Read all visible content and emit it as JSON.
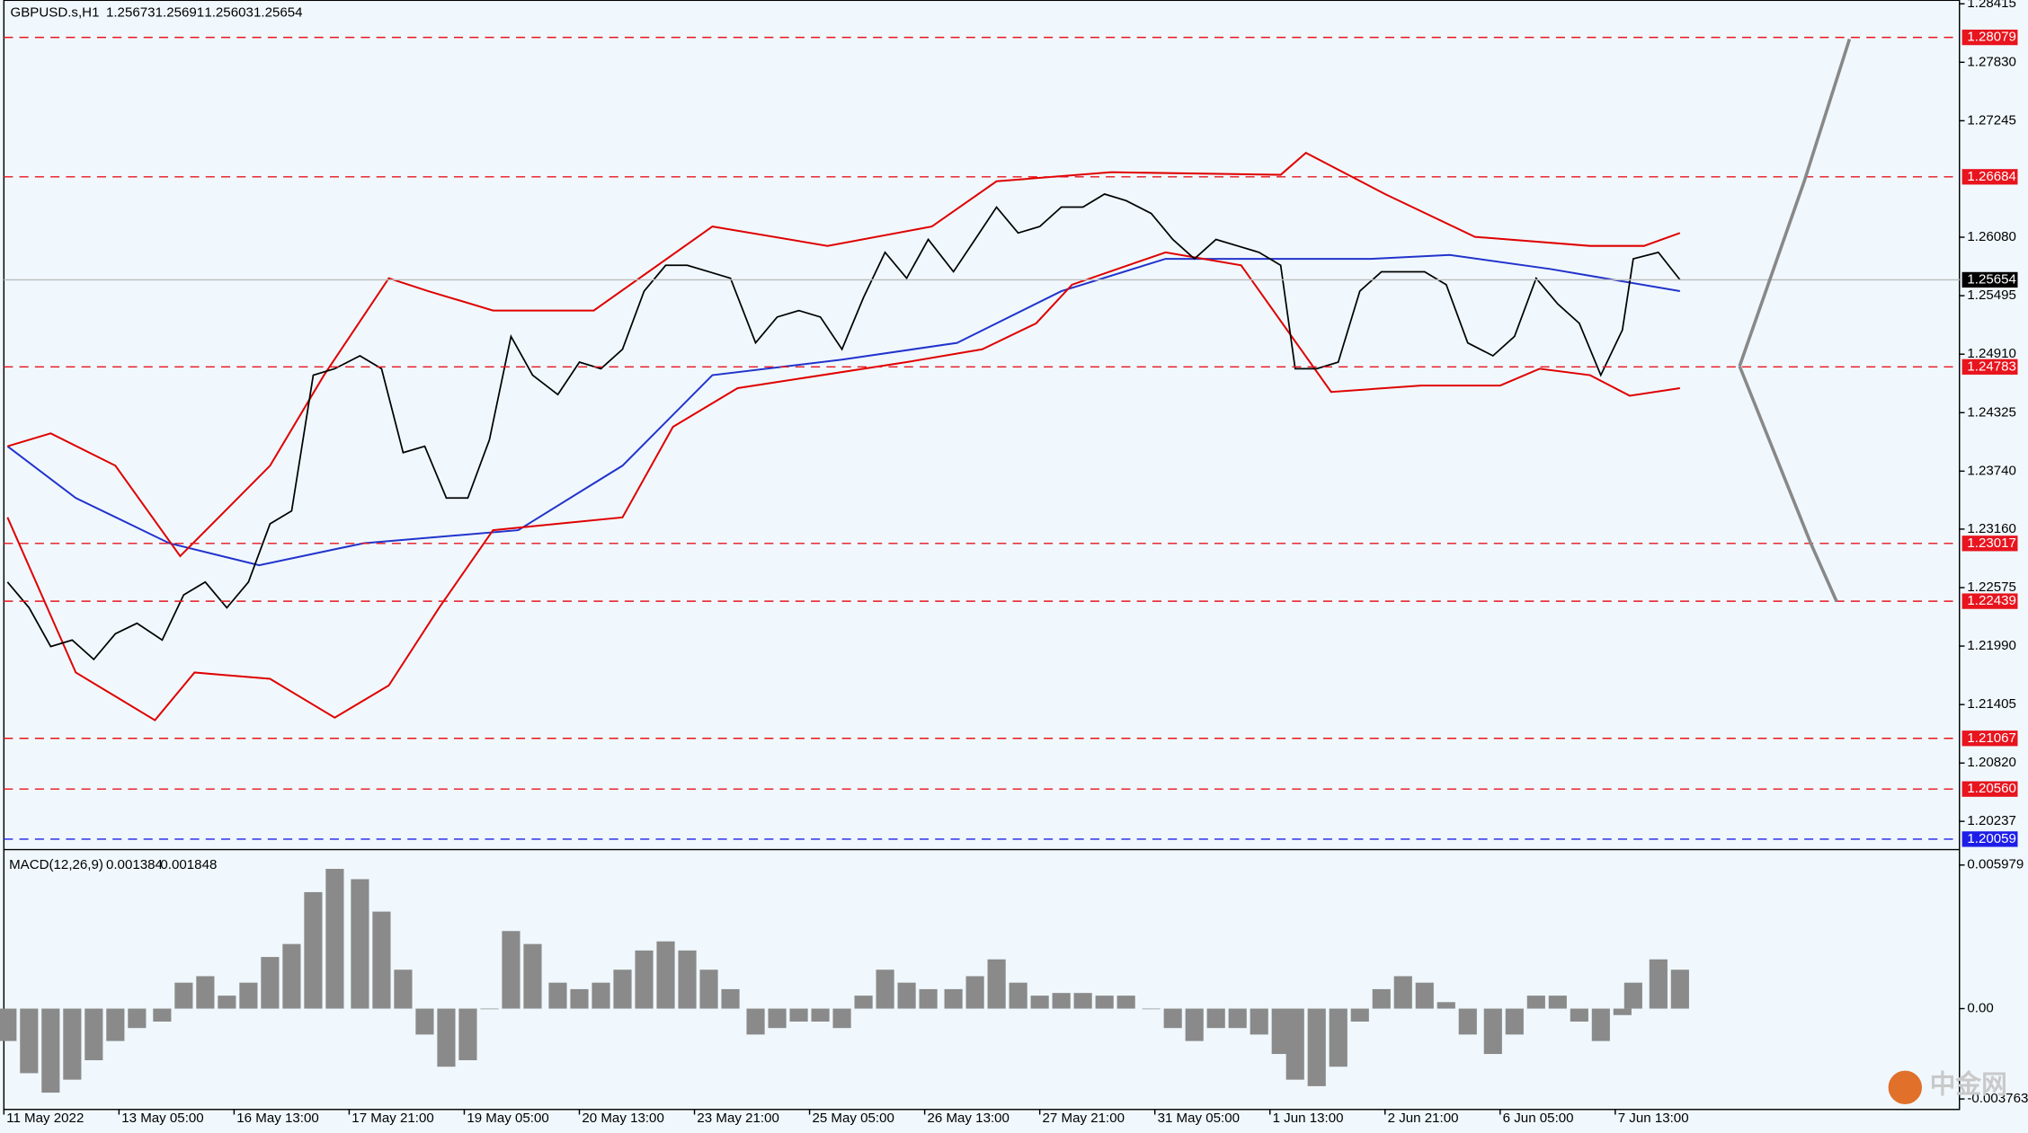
{
  "chart_data": [
    {
      "type": "line",
      "title": "GBPUSD.s,H1",
      "quote": [
        1.25673,
        1.25691,
        1.25603,
        1.25654
      ],
      "xlim": [
        0,
        543.7
      ],
      "ylim": [
        1.1998,
        1.2845
      ],
      "xticks": [
        {
          "value": 0,
          "label": "11 May 2022"
        },
        {
          "value": 32,
          "label": "13 May 05:00"
        },
        {
          "value": 64,
          "label": "16 May 13:00"
        },
        {
          "value": 96,
          "label": "17 May 21:00"
        },
        {
          "value": 128,
          "label": "19 May 05:00"
        },
        {
          "value": 160,
          "label": "20 May 13:00"
        },
        {
          "value": 192,
          "label": "23 May 21:00"
        },
        {
          "value": 224,
          "label": "25 May 05:00"
        },
        {
          "value": 256,
          "label": "26 May 13:00"
        },
        {
          "value": 288,
          "label": "27 May 21:00"
        },
        {
          "value": 320,
          "label": "31 May 05:00"
        },
        {
          "value": 352,
          "label": "1 Jun 13:00"
        },
        {
          "value": 384,
          "label": "2 Jun 21:00"
        },
        {
          "value": 416,
          "label": "6 Jun 05:00"
        },
        {
          "value": 448,
          "label": "7 Jun 13:00"
        }
      ],
      "yticks": [
        1.28415,
        {
          "value": 1.2783,
          "label": "1.27830"
        },
        1.27245,
        {
          "value": 1.2608,
          "label": "1.26080"
        },
        1.25495,
        {
          "value": 1.2491,
          "label": "1.24910"
        },
        1.24325,
        {
          "value": 1.2374,
          "label": "1.23740"
        },
        {
          "value": 1.2316,
          "label": "1.23160"
        },
        1.22575,
        {
          "value": 1.2199,
          "label": "1.21990"
        },
        1.21405,
        {
          "value": 1.2082,
          "label": "1.20820"
        },
        1.20237
      ],
      "levels": [
        1.28079,
        1.26684,
        1.24783,
        1.23017,
        1.22439,
        1.21067,
        {
          "value": 1.2056,
          "label": "1.20560"
        }
      ],
      "level_color": "#e8141e",
      "blue_level": 1.20059,
      "blue_level_color": "#1e1ee8",
      "last": 1.25654,
      "color": "#000000",
      "x": [
        1,
        7,
        13,
        19,
        25,
        31,
        37,
        44,
        50,
        56,
        62,
        68,
        74,
        80,
        86,
        92,
        99,
        105,
        111,
        117,
        123,
        129,
        135,
        141,
        147,
        154,
        160,
        166,
        172,
        178,
        184,
        190,
        196,
        202,
        209,
        215,
        221,
        227,
        233,
        239,
        245,
        251,
        257,
        264,
        270,
        276,
        282,
        288,
        294,
        300,
        306,
        312,
        319,
        325,
        331,
        337,
        343,
        349,
        355,
        359,
        365,
        371,
        377,
        383,
        389,
        395,
        401,
        407,
        414,
        420,
        426,
        432,
        438,
        444,
        450,
        453,
        460,
        466
      ],
      "values": [
        1.22631,
        1.22373,
        1.21985,
        1.2205,
        1.21856,
        1.22114,
        1.22218,
        1.2205,
        1.22502,
        1.22631,
        1.22373,
        1.22631,
        1.23213,
        1.23342,
        1.247,
        1.24765,
        1.24894,
        1.24765,
        1.23925,
        1.23989,
        1.23472,
        1.23472,
        1.24054,
        1.25088,
        1.247,
        1.24506,
        1.2483,
        1.24765,
        1.24959,
        1.25541,
        1.25799,
        1.25799,
        1.25735,
        1.2567,
        1.25023,
        1.25282,
        1.25347,
        1.25282,
        1.24959,
        1.25476,
        1.25929,
        1.2567,
        1.26058,
        1.25735,
        1.26058,
        1.26381,
        1.26123,
        1.26187,
        1.26381,
        1.26381,
        1.26511,
        1.26446,
        1.26317,
        1.26058,
        1.25864,
        1.26058,
        1.25993,
        1.25929,
        1.25799,
        1.24765,
        1.24765,
        1.2483,
        1.25541,
        1.25735,
        1.25735,
        1.25735,
        1.25605,
        1.25023,
        1.24894,
        1.25088,
        1.2567,
        1.25412,
        1.25218,
        1.247,
        1.25153,
        1.25864,
        1.25929,
        1.25654
      ],
      "overlays": [
        {
          "color": "#2233cc",
          "x": [
            1,
            20,
            46,
            71,
            100,
            143,
            172,
            197,
            233,
            265,
            294,
            323,
            344,
            380,
            402,
            430,
            466
          ],
          "values": [
            1.23989,
            1.23472,
            1.23019,
            1.22799,
            1.23019,
            1.23149,
            1.23795,
            1.247,
            1.24855,
            1.25023,
            1.25541,
            1.25864,
            1.25864,
            1.25864,
            1.25903,
            1.25761,
            1.25541
          ]
        },
        {
          "color": "#e00000",
          "x": [
            1,
            13,
            31,
            49,
            74,
            89,
            107,
            118,
            136,
            164,
            197,
            229,
            258,
            276,
            308,
            355,
            362,
            384,
            409,
            441,
            456,
            466
          ],
          "values": [
            1.23989,
            1.24118,
            1.23795,
            1.2289,
            1.23795,
            1.247,
            1.2567,
            1.25541,
            1.25347,
            1.25347,
            1.26187,
            1.25993,
            1.26187,
            1.2664,
            1.2673,
            1.26704,
            1.26924,
            1.26511,
            1.26084,
            1.25993,
            1.25993,
            1.26123
          ]
        },
        {
          "color": "#e00000",
          "x": [
            1,
            20,
            42,
            53,
            74,
            92,
            107,
            121,
            136,
            172,
            186,
            204,
            251,
            272,
            287,
            297,
            323,
            344,
            369,
            394,
            416,
            427,
            441,
            452,
            466
          ],
          "values": [
            1.23278,
            1.21726,
            1.21248,
            1.21726,
            1.21662,
            1.21274,
            1.21597,
            1.22373,
            1.23149,
            1.23278,
            1.24183,
            1.24571,
            1.2483,
            1.24959,
            1.25218,
            1.25605,
            1.25929,
            1.25799,
            1.24532,
            1.24597,
            1.24597,
            1.24765,
            1.247,
            1.24494,
            1.24571
          ]
        }
      ]
    },
    {
      "type": "bar",
      "title": "MACD(12,26,9)",
      "params": [
        0.001384,
        0.001848
      ],
      "xlim": [
        0,
        543.7
      ],
      "ylim": [
        -0.0042,
        0.00646
      ],
      "yticks": [
        0.005979,
        {
          "value": 0,
          "label": "0.00"
        },
        -0.003763
      ],
      "color": "#8a8a8a",
      "x": [
        1,
        7,
        13,
        19,
        25,
        31,
        37,
        44,
        50,
        56,
        62,
        68,
        74,
        80,
        86,
        92,
        99,
        105,
        111,
        117,
        123,
        129,
        135,
        141,
        147,
        154,
        160,
        166,
        172,
        178,
        184,
        190,
        196,
        202,
        209,
        215,
        221,
        227,
        233,
        239,
        245,
        251,
        257,
        264,
        270,
        276,
        282,
        288,
        294,
        300,
        306,
        312,
        319,
        325,
        331,
        337,
        343,
        349,
        355,
        359,
        365,
        371,
        377,
        383,
        389,
        395,
        401,
        407,
        414,
        420,
        426,
        432,
        438,
        444,
        450,
        453,
        460,
        466
      ],
      "values": [
        -0.00135,
        -0.00269,
        -0.0035,
        -0.00296,
        -0.00215,
        -0.00135,
        -0.00081,
        -0.00054,
        0.00108,
        0.00135,
        0.00054,
        0.00108,
        0.00215,
        0.00269,
        0.00485,
        0.00582,
        0.00539,
        0.00404,
        0.00162,
        -0.00108,
        -0.00242,
        -0.00215,
        0,
        0.00323,
        0.00269,
        0.00108,
        0.00081,
        0.00108,
        0.00162,
        0.00242,
        0.0028,
        0.00242,
        0.00162,
        0.00081,
        -0.00108,
        -0.00081,
        -0.00054,
        -0.00054,
        -0.00081,
        0.00054,
        0.00162,
        0.00108,
        0.00081,
        0.00081,
        0.00135,
        0.00205,
        0.00108,
        0.00054,
        0.00065,
        0.00065,
        0.00054,
        0.00054,
        0,
        -0.00081,
        -0.00135,
        -0.00081,
        -0.00081,
        -0.00108,
        -0.00189,
        -0.00296,
        -0.00323,
        -0.00242,
        -0.00054,
        0.00081,
        0.00135,
        0.00108,
        0.00027,
        -0.00108,
        -0.00189,
        -0.00108,
        0.00054,
        0.00054,
        -0.00054,
        -0.00135,
        -0.00027,
        0.00108,
        0.00205,
        0.00162
      ]
    }
  ],
  "watermark": "中金网"
}
